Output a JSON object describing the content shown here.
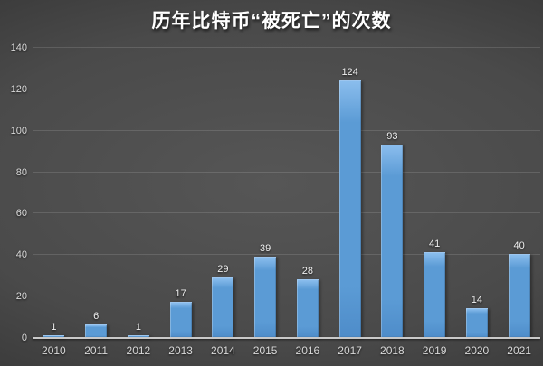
{
  "chart_data": {
    "type": "bar",
    "title": "历年比特币“被死亡”的次数",
    "categories": [
      "2010",
      "2011",
      "2012",
      "2013",
      "2014",
      "2015",
      "2016",
      "2017",
      "2018",
      "2019",
      "2020",
      "2021"
    ],
    "values": [
      1,
      6,
      1,
      17,
      29,
      39,
      28,
      124,
      93,
      41,
      14,
      40
    ],
    "xlabel": "",
    "ylabel": "",
    "ylim": [
      0,
      140
    ],
    "yticks": [
      0,
      20,
      40,
      60,
      80,
      100,
      120,
      140
    ],
    "grid": true,
    "legend": false,
    "data_labels": true
  },
  "colors": {
    "bar": "#5b9bd5",
    "bar_light": "#8abded",
    "bar_dark": "#4e8cc9",
    "axis_line": "#c9c9c9",
    "gridline": "rgba(255,255,255,0.13)",
    "label_text": "#f0f0f0",
    "tick_text": "#d9d9d9",
    "title_text": "#ffffff",
    "bg_center": "#565656",
    "bg_edge": "#272727"
  }
}
